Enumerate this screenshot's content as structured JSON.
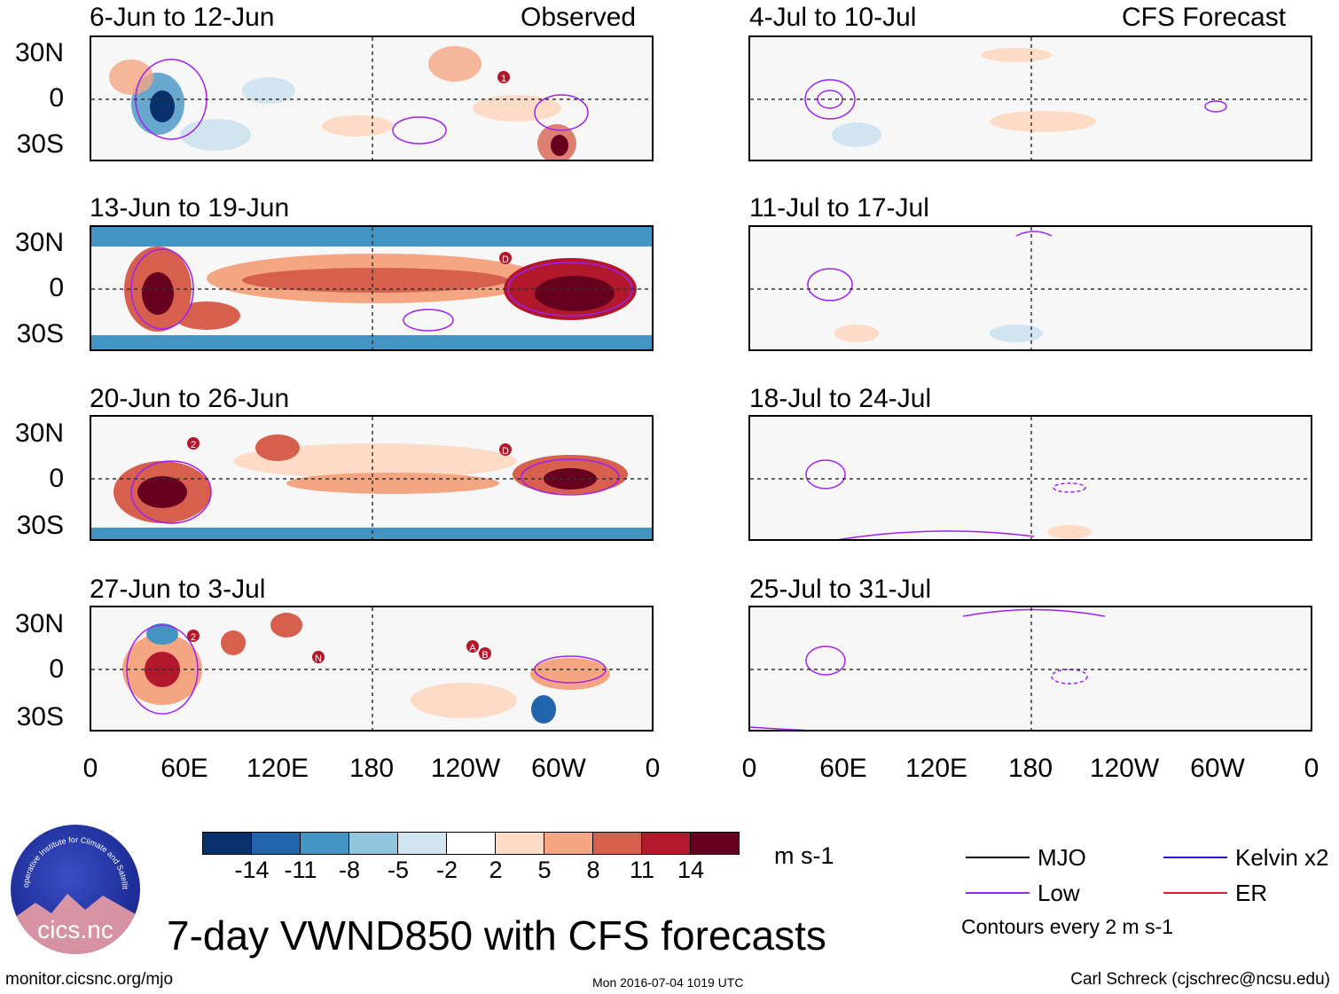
{
  "title": "7-day VWND850 with CFS forecasts",
  "observed_label": "Observed",
  "forecast_label": "CFS Forecast",
  "observed_panels": [
    {
      "title": "6-Jun to 12-Jun"
    },
    {
      "title": "13-Jun to 19-Jun"
    },
    {
      "title": "20-Jun to 26-Jun"
    },
    {
      "title": "27-Jun to 3-Jul"
    }
  ],
  "forecast_panels": [
    {
      "title": "4-Jul to 10-Jul"
    },
    {
      "title": "11-Jul to 17-Jul"
    },
    {
      "title": "18-Jul to 24-Jul"
    },
    {
      "title": "25-Jul to 31-Jul"
    }
  ],
  "lat_labels": [
    "30N",
    "0",
    "30S"
  ],
  "lon_labels": [
    "0",
    "60E",
    "120E",
    "180",
    "120W",
    "60W",
    "0"
  ],
  "colorbar": {
    "labels": [
      "-14",
      "-11",
      "-8",
      "-5",
      "-2",
      "2",
      "5",
      "8",
      "11",
      "14"
    ],
    "colors": [
      "#08306b",
      "#2166ac",
      "#4393c3",
      "#92c5de",
      "#d1e5f0",
      "#ffffff",
      "#fddbc7",
      "#f4a582",
      "#d6604d",
      "#b2182b",
      "#67001f"
    ],
    "units": "m s-1"
  },
  "legend": {
    "items": [
      {
        "label": "MJO",
        "color": "#000000"
      },
      {
        "label": "Kelvin x2",
        "color": "#1a1adb"
      },
      {
        "label": "Low",
        "color": "#a020f0"
      },
      {
        "label": "ER",
        "color": "#e02020"
      }
    ],
    "contour_note": "Contours every 2 m s-1"
  },
  "logo": {
    "ring_text": "Cooperative Institute for Climate and Satellites",
    "name": "cics.nc"
  },
  "footer": {
    "url": "monitor.cicsnc.org/mjo",
    "timestamp": "Mon 2016-07-04 1019 UTC",
    "credit": "Carl Schreck (cjschrec@ncsu.edu)"
  },
  "storm_markers": {
    "panel1": [
      "1"
    ],
    "panel2": [
      "D"
    ],
    "panel3": [
      "2",
      "D"
    ],
    "panel4": [
      "2",
      "N",
      "A",
      "B"
    ]
  }
}
